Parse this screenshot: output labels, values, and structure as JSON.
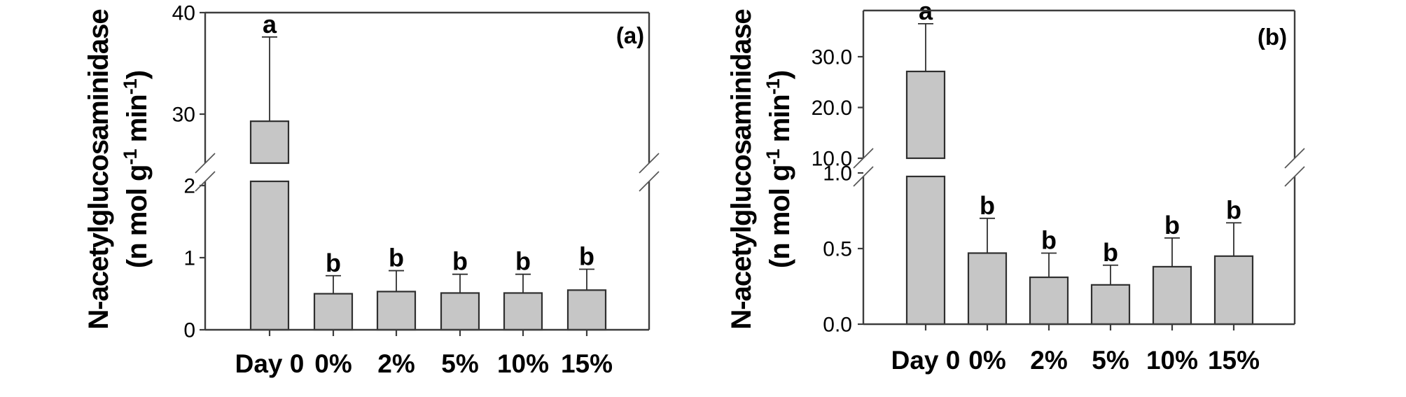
{
  "style": {
    "background": "#ffffff",
    "bar_fill": "#c6c6c6",
    "bar_stroke": "#2f2f2f",
    "axis_color": "#3d3d3d",
    "break_mark_color": "#555555",
    "text_color": "#000000"
  },
  "chart_data": [
    {
      "type": "bar",
      "panel_label": "(a)",
      "ylabel_line1": "N-acetylglucosaminidase",
      "ylabel_line2_segments": [
        {
          "text": "(n mol g"
        },
        {
          "text": "-1",
          "superscript": true
        },
        {
          "text": " min"
        },
        {
          "text": "-1",
          "superscript": true
        },
        {
          "text": ")"
        }
      ],
      "categories": [
        "Day 0",
        "0%",
        "2%",
        "5%",
        "10%",
        "15%"
      ],
      "values": [
        29.3,
        0.5,
        0.53,
        0.51,
        0.51,
        0.55
      ],
      "error_bar_tops": [
        37.6,
        0.75,
        0.82,
        0.77,
        0.77,
        0.84
      ],
      "significance_letters": [
        "a",
        "b",
        "b",
        "b",
        "b",
        "b"
      ],
      "y_axis": {
        "broken": true,
        "lower_range": [
          0,
          2
        ],
        "upper_range": [
          25,
          40
        ],
        "lower_ticks": [
          {
            "value": 0,
            "label": "0"
          },
          {
            "value": 1,
            "label": "1"
          },
          {
            "value": 2,
            "label": "2"
          }
        ],
        "upper_ticks": [
          {
            "value": 30,
            "label": "30"
          },
          {
            "value": 40,
            "label": "40"
          }
        ]
      }
    },
    {
      "type": "bar",
      "panel_label": "(b)",
      "ylabel_line1": "N-acetylglucosaminidase",
      "ylabel_line2_segments": [
        {
          "text": "(n mol g"
        },
        {
          "text": "-1",
          "superscript": true
        },
        {
          "text": " min"
        },
        {
          "text": "-1",
          "superscript": true
        },
        {
          "text": ")"
        }
      ],
      "categories": [
        "Day 0",
        "0%",
        "2%",
        "5%",
        "10%",
        "15%"
      ],
      "values": [
        27.1,
        0.47,
        0.31,
        0.26,
        0.38,
        0.45
      ],
      "error_bar_tops": [
        36.5,
        0.7,
        0.47,
        0.39,
        0.57,
        0.67
      ],
      "significance_letters": [
        "a",
        "b",
        "b",
        "b",
        "b",
        "b"
      ],
      "y_axis": {
        "broken": true,
        "lower_range": [
          0,
          1
        ],
        "upper_range": [
          10,
          30
        ],
        "lower_ticks": [
          {
            "value": 0,
            "label": "0.0"
          },
          {
            "value": 0.5,
            "label": "0.5"
          },
          {
            "value": 1.0,
            "label": "1.0"
          }
        ],
        "upper_ticks": [
          {
            "value": 10,
            "label": "10.0"
          },
          {
            "value": 20,
            "label": "20.0"
          },
          {
            "value": 30,
            "label": "30.0"
          }
        ]
      }
    }
  ]
}
